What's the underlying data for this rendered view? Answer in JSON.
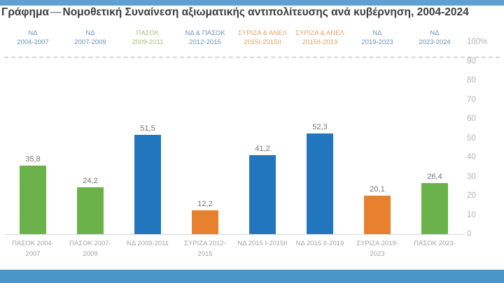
{
  "header": {
    "title_prefix": "Γράφημα",
    "title_dash": "—",
    "title_main": "Νομοθετική Συναίνεση αξιωματικής αντιπολίτευσης ανά κυβέρνηση, 2004-2024"
  },
  "colors": {
    "top_strip": "#5fa0d2",
    "bottom_strip": "#4b96c8"
  },
  "chart_data": {
    "type": "bar",
    "title": "Γράφημα — Νομοθετική Συναίνεση αξιωματικής αντιπολίτευσης ανά κυβέρνηση, 2004-2024",
    "categories": [
      "ΠΑΣΟΚ 2004-2007",
      "ΠΑΣΟΚ 2007-2009",
      "ΝΔ 2009-2011",
      "ΣΥΡΙΖΑ 2012-2015",
      "ΝΔ 2015 I-2015II",
      "ΝΔ 2015 II-2019",
      "ΣΥΡΙΖΑ 2019-2023",
      "ΠΑΣΟΚ 2023-"
    ],
    "values": [
      35.8,
      24.2,
      51.5,
      12.2,
      41.2,
      52.3,
      20.1,
      26.4
    ],
    "value_labels": [
      "35,8",
      "24,2",
      "51,5",
      "12,2",
      "41,2",
      "52,3",
      "20,1",
      "26,4"
    ],
    "bar_colors": [
      "green",
      "green",
      "blue",
      "orange",
      "blue",
      "blue",
      "orange",
      "green"
    ],
    "governments": [
      {
        "party": "ΝΔ",
        "years": "2004-2007",
        "color": "blue"
      },
      {
        "party": "ΝΔ",
        "years": "2007-2009",
        "color": "blue"
      },
      {
        "party": "ΠΑΣΟΚ",
        "years": "2009-2011",
        "color": "green"
      },
      {
        "party": "ΝΔ & ΠΑΣΟΚ",
        "years": "2012-2015",
        "color": "blue"
      },
      {
        "party": "ΣΥΡΙΖΑ & ΑΝΕΛ",
        "years": "2015I-2015II",
        "color": "orange"
      },
      {
        "party": "ΣΥΡΙΖΑ & ΑΝΕΛ",
        "years": "2015II-2019",
        "color": "orange"
      },
      {
        "party": "ΝΔ",
        "years": "2019-2023",
        "color": "blue"
      },
      {
        "party": "ΝΔ",
        "years": "2023-2024",
        "color": "blue"
      }
    ],
    "y_ticks": [
      "100%",
      "90",
      "80",
      "70",
      "60",
      "50",
      "40",
      "30",
      "20",
      "10",
      "0"
    ],
    "ylim": [
      0,
      100
    ],
    "grid": false,
    "legend": "none",
    "colors": {
      "blue": "#2176bd",
      "green": "#6cb24a",
      "orange": "#e8812e"
    },
    "label_colors": {
      "blue": "#6a91c0",
      "green": "#a3c37c",
      "orange": "#e6a064"
    }
  }
}
